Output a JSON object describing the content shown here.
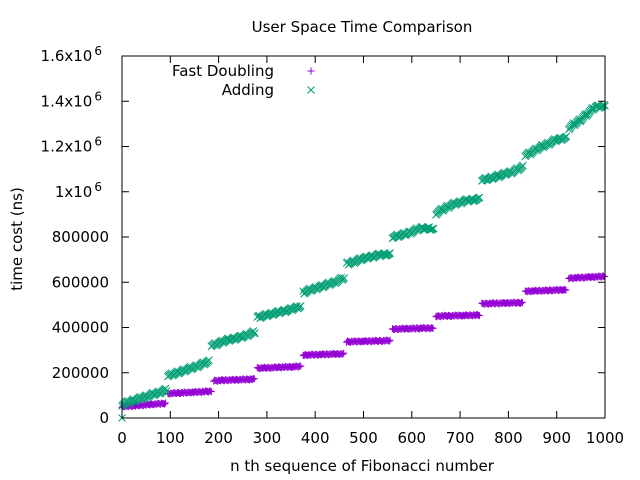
{
  "chart_data": {
    "type": "scatter",
    "title": "User Space Time Comparison",
    "xlabel": "n th sequence of Fibonacci number",
    "ylabel": "time cost (ns)",
    "xlim": [
      0,
      1000
    ],
    "ylim": [
      0,
      1600000
    ],
    "x_ticks": [
      {
        "value": 0,
        "label": "0"
      },
      {
        "value": 100,
        "label": "100"
      },
      {
        "value": 200,
        "label": "200"
      },
      {
        "value": 300,
        "label": "300"
      },
      {
        "value": 400,
        "label": "400"
      },
      {
        "value": 500,
        "label": "500"
      },
      {
        "value": 600,
        "label": "600"
      },
      {
        "value": 700,
        "label": "700"
      },
      {
        "value": 800,
        "label": "800"
      },
      {
        "value": 900,
        "label": "900"
      },
      {
        "value": 1000,
        "label": "1000"
      }
    ],
    "y_ticks": [
      {
        "value": 0,
        "label": "0"
      },
      {
        "value": 200000,
        "label": "200000"
      },
      {
        "value": 400000,
        "label": "400000"
      },
      {
        "value": 600000,
        "label": "600000"
      },
      {
        "value": 800000,
        "label": "800000"
      },
      {
        "value": 1000000,
        "label": "1x10",
        "exp": "6"
      },
      {
        "value": 1200000,
        "label": "1.2x10",
        "exp": "6"
      },
      {
        "value": 1400000,
        "label": "1.4x10",
        "exp": "6"
      },
      {
        "value": 1600000,
        "label": "1.6x10",
        "exp": "6"
      }
    ],
    "grid": false,
    "legend_position": "top-left",
    "series": [
      {
        "name": "Fast Doubling",
        "marker": "plus",
        "color": "#9400d3",
        "steps": [
          {
            "x": [
              0,
              90
            ],
            "y": [
              50000,
              65000
            ]
          },
          {
            "x": [
              95,
              185
            ],
            "y": [
              108000,
              118000
            ]
          },
          {
            "x": [
              190,
              275
            ],
            "y": [
              165000,
              172000
            ]
          },
          {
            "x": [
              280,
              370
            ],
            "y": [
              220000,
              228000
            ]
          },
          {
            "x": [
              375,
              460
            ],
            "y": [
              278000,
              284000
            ]
          },
          {
            "x": [
              465,
              555
            ],
            "y": [
              337000,
              342000
            ]
          },
          {
            "x": [
              560,
              645
            ],
            "y": [
              393000,
              398000
            ]
          },
          {
            "x": [
              650,
              740
            ],
            "y": [
              450000,
              455000
            ]
          },
          {
            "x": [
              745,
              830
            ],
            "y": [
              505000,
              510000
            ]
          },
          {
            "x": [
              835,
              920
            ],
            "y": [
              560000,
              567000
            ]
          },
          {
            "x": [
              925,
              1000
            ],
            "y": [
              618000,
              626000
            ]
          }
        ]
      },
      {
        "name": "Adding",
        "marker": "cross",
        "color": "#009e73",
        "points": [
          [
            0,
            60000
          ],
          [
            20,
            75000
          ],
          [
            50,
            95000
          ],
          [
            80,
            115000
          ],
          [
            92,
            125000
          ],
          [
            95,
            185000
          ],
          [
            120,
            205000
          ],
          [
            150,
            225000
          ],
          [
            180,
            250000
          ],
          [
            185,
            320000
          ],
          [
            220,
            345000
          ],
          [
            250,
            360000
          ],
          [
            275,
            380000
          ],
          [
            280,
            445000
          ],
          [
            320,
            465000
          ],
          [
            350,
            480000
          ],
          [
            370,
            495000
          ],
          [
            375,
            555000
          ],
          [
            410,
            580000
          ],
          [
            440,
            600000
          ],
          [
            460,
            620000
          ],
          [
            465,
            680000
          ],
          [
            500,
            705000
          ],
          [
            530,
            720000
          ],
          [
            555,
            725000
          ],
          [
            560,
            800000
          ],
          [
            590,
            815000
          ],
          [
            620,
            840000
          ],
          [
            645,
            835000
          ],
          [
            650,
            905000
          ],
          [
            680,
            940000
          ],
          [
            710,
            960000
          ],
          [
            740,
            968000
          ],
          [
            745,
            1050000
          ],
          [
            780,
            1070000
          ],
          [
            810,
            1090000
          ],
          [
            830,
            1110000
          ],
          [
            835,
            1160000
          ],
          [
            870,
            1200000
          ],
          [
            900,
            1230000
          ],
          [
            920,
            1240000
          ],
          [
            925,
            1280000
          ],
          [
            950,
            1320000
          ],
          [
            980,
            1375000
          ],
          [
            1000,
            1380000
          ]
        ]
      }
    ]
  }
}
